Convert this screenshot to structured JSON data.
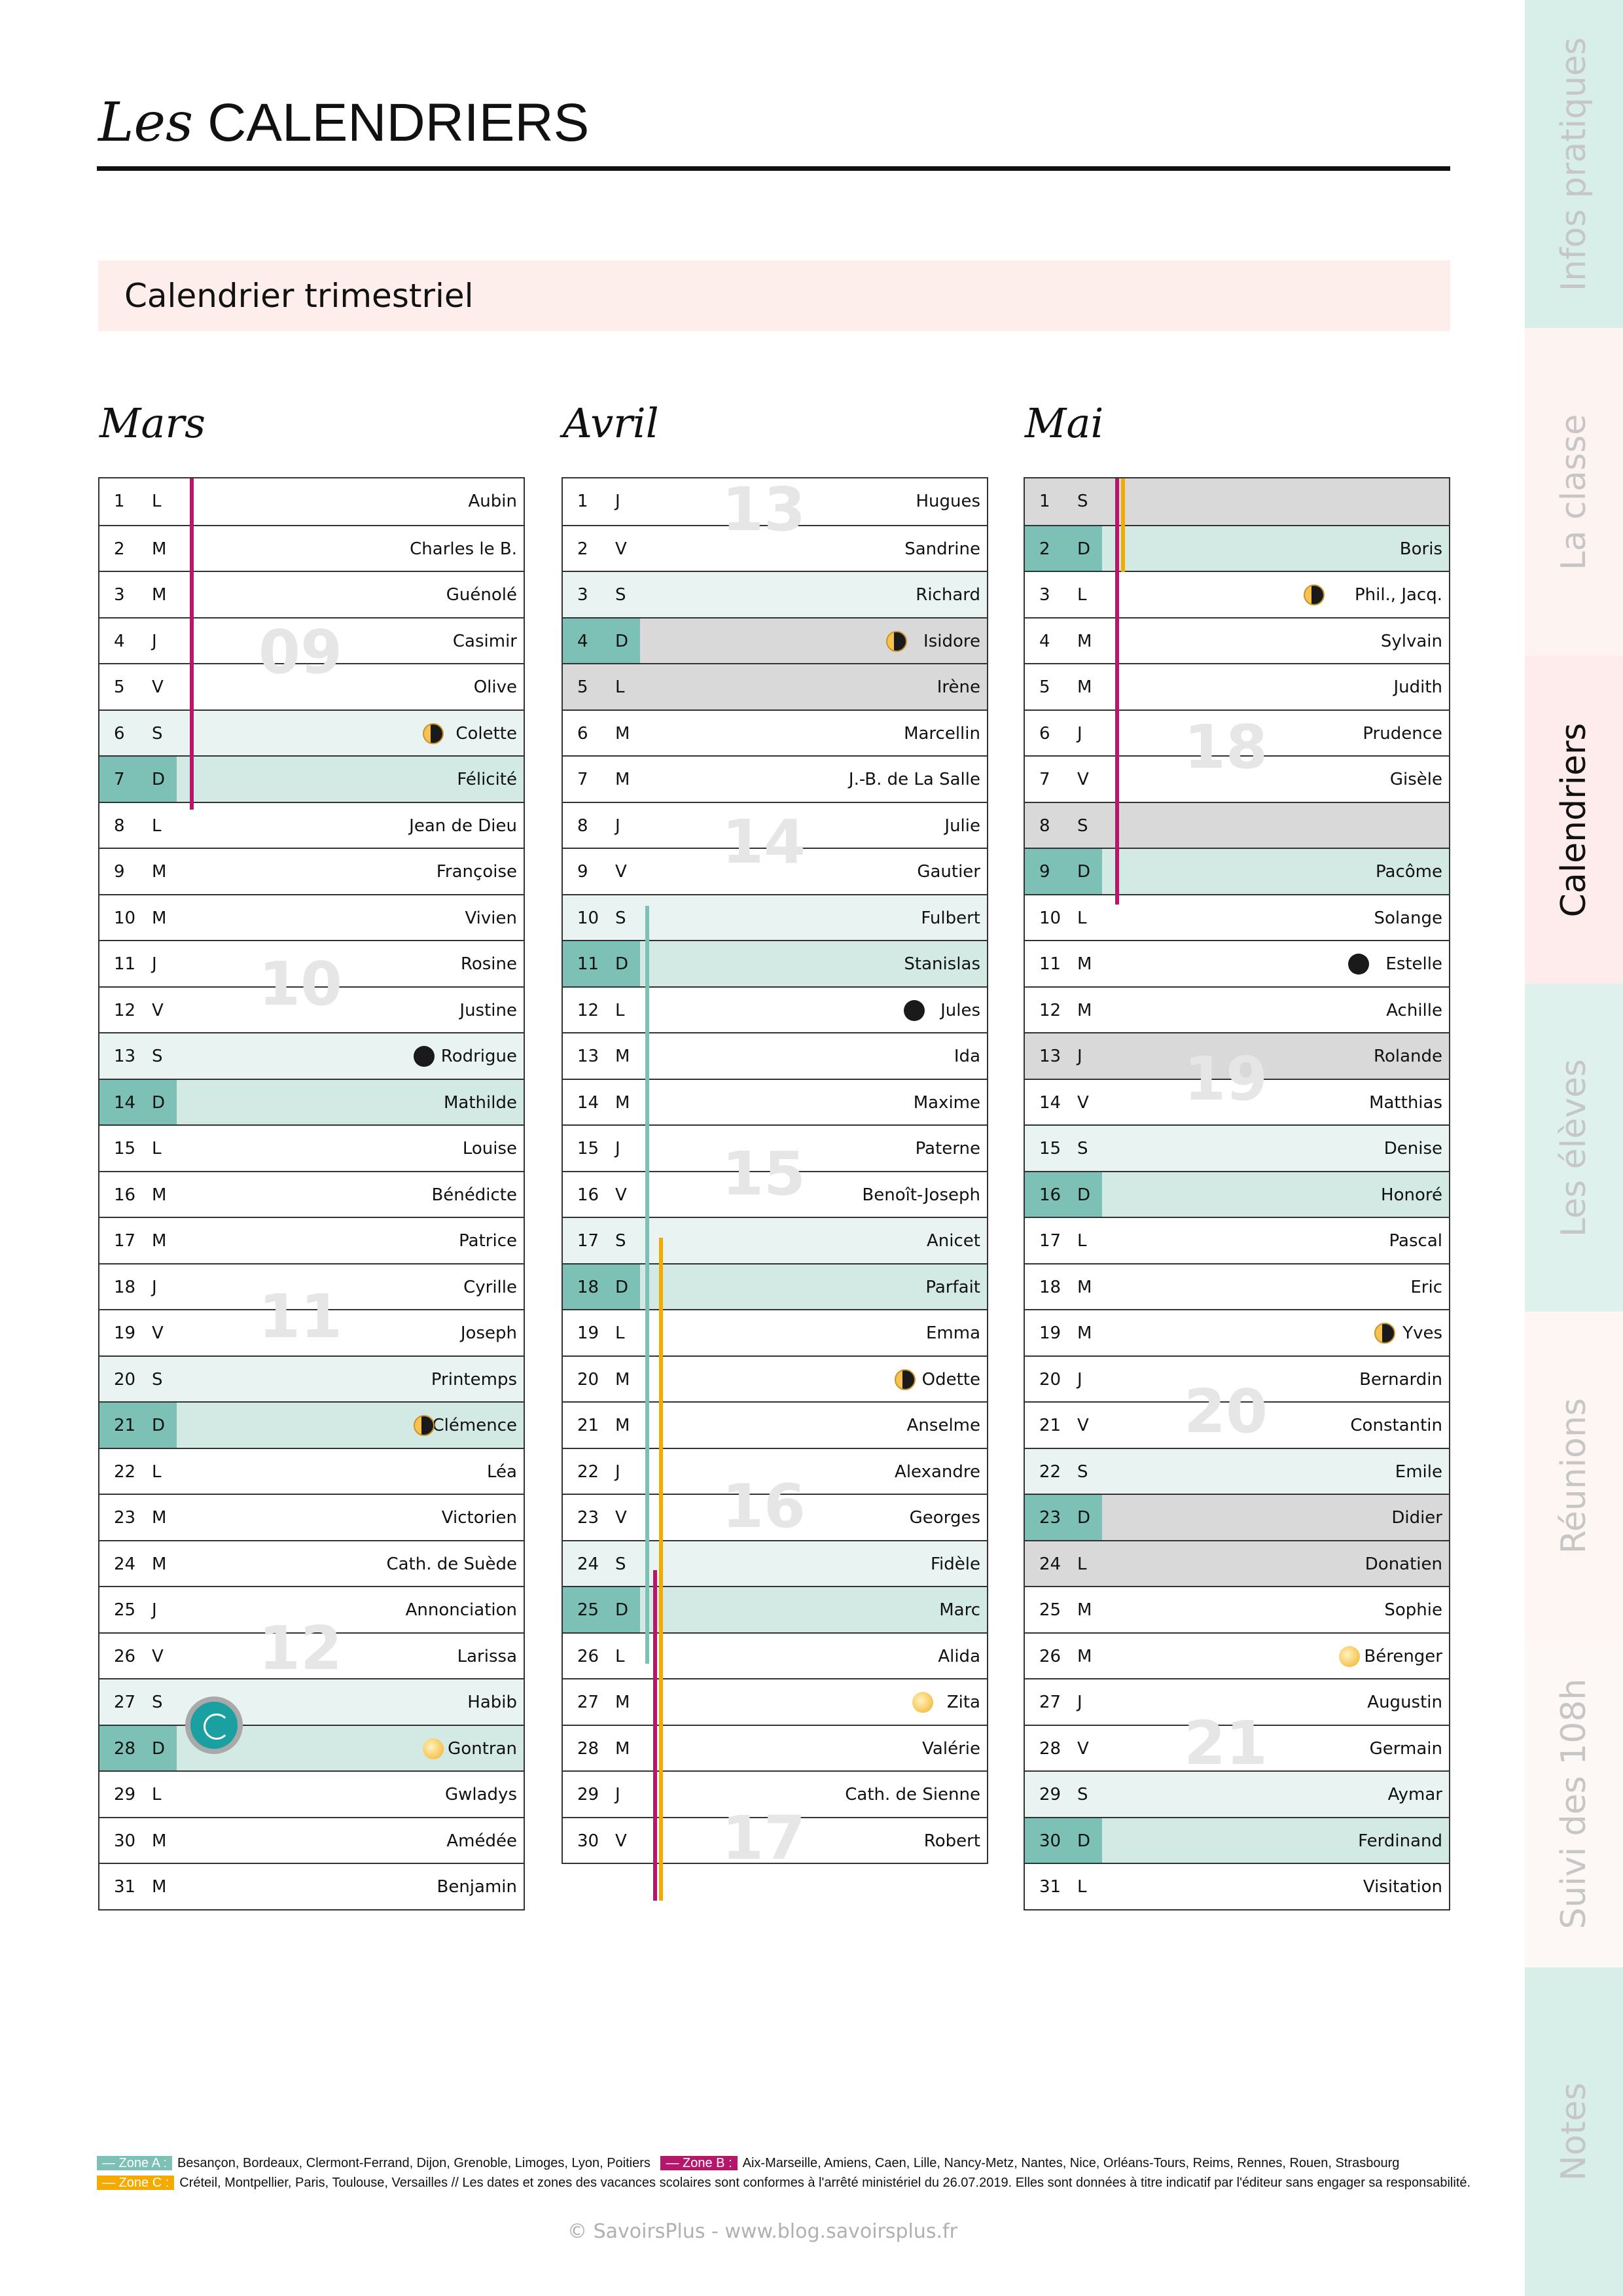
{
  "header": {
    "title_prefix": "Les",
    "title_main": "CALENDRIERS",
    "section": "Calendrier trimestriel"
  },
  "colors": {
    "zoneA": "#7dc0b5",
    "zoneB": "#b5176b",
    "zoneC": "#f5aa00",
    "sunday_cell": "#7dc0b5",
    "holiday": "#d9d9d9"
  },
  "months": [
    {
      "name": "Mars",
      "weeks": [
        {
          "n": "09",
          "day": 4
        },
        {
          "n": "10",
          "day": 11
        },
        {
          "n": "11",
          "day": 18
        },
        {
          "n": "12",
          "day": 25
        }
      ],
      "vacations": [
        {
          "zone": "B",
          "from": 1,
          "to": 7
        }
      ],
      "days": [
        [
          1,
          "L",
          "Aubin"
        ],
        [
          2,
          "M",
          "Charles le B."
        ],
        [
          3,
          "M",
          "Guénolé"
        ],
        [
          4,
          "J",
          "Casimir"
        ],
        [
          5,
          "V",
          "Olive"
        ],
        [
          6,
          "S",
          "Colette",
          "last"
        ],
        [
          7,
          "D",
          "Félicité"
        ],
        [
          8,
          "L",
          "Jean de Dieu"
        ],
        [
          9,
          "M",
          "Françoise"
        ],
        [
          10,
          "M",
          "Vivien"
        ],
        [
          11,
          "J",
          "Rosine"
        ],
        [
          12,
          "V",
          "Justine"
        ],
        [
          13,
          "S",
          "Rodrigue",
          "new"
        ],
        [
          14,
          "D",
          "Mathilde"
        ],
        [
          15,
          "L",
          "Louise"
        ],
        [
          16,
          "M",
          "Bénédicte"
        ],
        [
          17,
          "M",
          "Patrice"
        ],
        [
          18,
          "J",
          "Cyrille"
        ],
        [
          19,
          "V",
          "Joseph"
        ],
        [
          20,
          "S",
          "Printemps"
        ],
        [
          21,
          "D",
          "Clémence",
          "first"
        ],
        [
          22,
          "L",
          "Léa"
        ],
        [
          23,
          "M",
          "Victorien"
        ],
        [
          24,
          "M",
          "Cath. de Suède"
        ],
        [
          25,
          "J",
          "Annonciation"
        ],
        [
          26,
          "V",
          "Larissa"
        ],
        [
          27,
          "S",
          "Habib"
        ],
        [
          28,
          "D",
          "Gontran",
          "full"
        ],
        [
          29,
          "L",
          "Gwladys"
        ],
        [
          30,
          "M",
          "Amédée"
        ],
        [
          31,
          "M",
          "Benjamin"
        ]
      ]
    },
    {
      "name": "Avril",
      "weeks": [
        {
          "n": "13",
          "day": 1
        },
        {
          "n": "14",
          "day": 8
        },
        {
          "n": "15",
          "day": 15
        },
        {
          "n": "16",
          "day": 22
        },
        {
          "n": "17",
          "day": 29
        }
      ],
      "vacations": [
        {
          "zone": "A",
          "from": 10,
          "to": 25
        },
        {
          "zone": "B",
          "from": 24,
          "to": 30
        },
        {
          "zone": "C",
          "from": 17,
          "to": 30
        }
      ],
      "days": [
        [
          1,
          "J",
          "Hugues"
        ],
        [
          2,
          "V",
          "Sandrine"
        ],
        [
          3,
          "S",
          "Richard"
        ],
        [
          4,
          "D",
          "Isidore",
          "last",
          true
        ],
        [
          5,
          "L",
          "Irène",
          "",
          true
        ],
        [
          6,
          "M",
          "Marcellin"
        ],
        [
          7,
          "M",
          "J.-B. de La Salle"
        ],
        [
          8,
          "J",
          "Julie"
        ],
        [
          9,
          "V",
          "Gautier"
        ],
        [
          10,
          "S",
          "Fulbert"
        ],
        [
          11,
          "D",
          "Stanislas"
        ],
        [
          12,
          "L",
          "Jules",
          "new"
        ],
        [
          13,
          "M",
          "Ida"
        ],
        [
          14,
          "M",
          "Maxime"
        ],
        [
          15,
          "J",
          "Paterne"
        ],
        [
          16,
          "V",
          "Benoît-Joseph"
        ],
        [
          17,
          "S",
          "Anicet"
        ],
        [
          18,
          "D",
          "Parfait"
        ],
        [
          19,
          "L",
          "Emma"
        ],
        [
          20,
          "M",
          "Odette",
          "first"
        ],
        [
          21,
          "M",
          "Anselme"
        ],
        [
          22,
          "J",
          "Alexandre"
        ],
        [
          23,
          "V",
          "Georges"
        ],
        [
          24,
          "S",
          "Fidèle"
        ],
        [
          25,
          "D",
          "Marc"
        ],
        [
          26,
          "L",
          "Alida"
        ],
        [
          27,
          "M",
          "Zita",
          "full"
        ],
        [
          28,
          "M",
          "Valérie"
        ],
        [
          29,
          "J",
          "Cath. de Sienne"
        ],
        [
          30,
          "V",
          "Robert"
        ]
      ]
    },
    {
      "name": "Mai",
      "weeks": [
        {
          "n": "18",
          "day": 6
        },
        {
          "n": "19",
          "day": 13
        },
        {
          "n": "20",
          "day": 20
        },
        {
          "n": "21",
          "day": 27
        }
      ],
      "vacations": [
        {
          "zone": "B",
          "from": 1,
          "to": 9
        },
        {
          "zone": "C",
          "from": 1,
          "to": 2
        }
      ],
      "days": [
        [
          1,
          "S",
          "",
          "",
          true
        ],
        [
          2,
          "D",
          "Boris"
        ],
        [
          3,
          "L",
          "Phil., Jacq.",
          "last"
        ],
        [
          4,
          "M",
          "Sylvain"
        ],
        [
          5,
          "M",
          "Judith"
        ],
        [
          6,
          "J",
          "Prudence"
        ],
        [
          7,
          "V",
          "Gisèle"
        ],
        [
          8,
          "S",
          "",
          "",
          true
        ],
        [
          9,
          "D",
          "Pacôme"
        ],
        [
          10,
          "L",
          "Solange"
        ],
        [
          11,
          "M",
          "Estelle",
          "new"
        ],
        [
          12,
          "M",
          "Achille"
        ],
        [
          13,
          "J",
          "Rolande",
          "",
          true
        ],
        [
          14,
          "V",
          "Matthias"
        ],
        [
          15,
          "S",
          "Denise"
        ],
        [
          16,
          "D",
          "Honoré"
        ],
        [
          17,
          "L",
          "Pascal"
        ],
        [
          18,
          "M",
          "Eric"
        ],
        [
          19,
          "M",
          "Yves",
          "first"
        ],
        [
          20,
          "J",
          "Bernardin"
        ],
        [
          21,
          "V",
          "Constantin"
        ],
        [
          22,
          "S",
          "Emile"
        ],
        [
          23,
          "D",
          "Didier",
          "",
          true
        ],
        [
          24,
          "L",
          "Donatien",
          "",
          true
        ],
        [
          25,
          "M",
          "Sophie"
        ],
        [
          26,
          "M",
          "Bérenger",
          "full"
        ],
        [
          27,
          "J",
          "Augustin"
        ],
        [
          28,
          "V",
          "Germain"
        ],
        [
          29,
          "S",
          "Aymar"
        ],
        [
          30,
          "D",
          "Ferdinand"
        ],
        [
          31,
          "L",
          "Visitation"
        ]
      ]
    }
  ],
  "sidebar": {
    "tabs": [
      {
        "label": "Infos pratiques",
        "color": "#d8eee9"
      },
      {
        "label": "La classe",
        "color": "#fdf3f0"
      },
      {
        "label": "Calendriers",
        "color": "#fdeceb",
        "active": true
      },
      {
        "label": "Les élèves",
        "color": "#dff1ed"
      },
      {
        "label": "Réunions",
        "color": "#fdf6f3"
      },
      {
        "label": "Suivi des 108h",
        "color": "#fdf7f5"
      },
      {
        "label": "Notes",
        "color": "#d8eee9"
      }
    ]
  },
  "legend": {
    "zoneA_label": "— Zone A :",
    "zoneA_cities": "Besançon, Bordeaux, Clermont-Ferrand, Dijon, Grenoble, Limoges, Lyon, Poitiers",
    "zoneB_label": "— Zone B :",
    "zoneB_cities": "Aix-Marseille, Amiens, Caen, Lille, Nancy-Metz, Nantes, Nice, Orléans-Tours, Reims, Rennes, Rouen, Strasbourg",
    "zoneC_label": "— Zone C :",
    "zoneC_cities": "Créteil, Montpellier, Paris, Toulouse, Versailles // Les dates et zones des vacances scolaires sont conformes à l'arrêté ministériel du 26.07.2019. Elles sont données à titre indicatif par l'éditeur sans engager sa responsabilité."
  },
  "footer": {
    "copyright": "© SavoirsPlus - www.blog.savoirsplus.fr"
  }
}
